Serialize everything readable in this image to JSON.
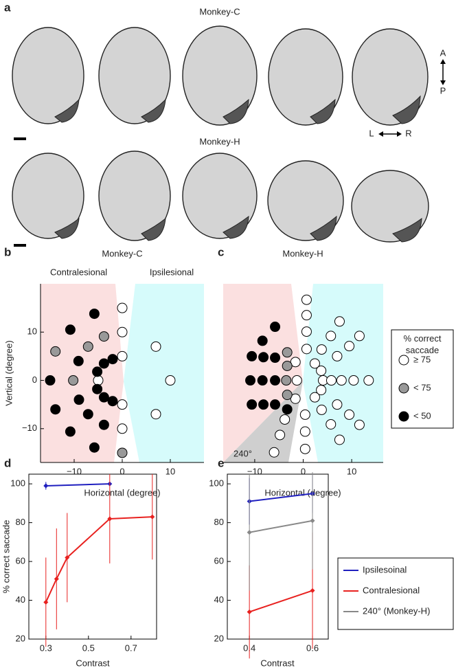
{
  "figure": {
    "panel_a": {
      "label": "a",
      "row_titles": [
        "Monkey-C",
        "Monkey-H"
      ],
      "orientation": [
        "A",
        "P",
        "L",
        "R"
      ]
    }
  },
  "chart_data": [
    {
      "type": "scatter",
      "label": "b",
      "title": "Monkey-C",
      "annotations": [
        "Contralesional",
        "Ipsilesional"
      ],
      "xlabel": "Horizontal (degree)",
      "ylabel": "Vertical (degree)",
      "xlim": [
        -17,
        17
      ],
      "ylim": [
        -17,
        20
      ],
      "xticks": [
        {
          "value": -10,
          "label": "−10"
        },
        0,
        10
      ],
      "yticks": [
        {
          "value": -10,
          "label": "−10"
        },
        0,
        10
      ],
      "series": [
        {
          "color": "#ffffff",
          "x": [
            0,
            0,
            0,
            -5,
            0,
            0,
            7,
            10,
            7
          ],
          "values": [
            15,
            10,
            5,
            0,
            -5,
            -10,
            7,
            0,
            -7
          ]
        },
        {
          "color": "#999999",
          "x": [
            -3.8,
            -13.9,
            -7.1,
            -10.2,
            0
          ],
          "values": [
            9.1,
            6,
            7,
            0,
            -15
          ]
        },
        {
          "color": "#000000",
          "x": [
            -5.8,
            -10.8,
            -9.1,
            -2,
            -3.8,
            -5.2,
            -15,
            -5.2,
            -3.8,
            -2,
            -13.9,
            -7.1,
            -9,
            -3.8,
            -10.8,
            -5.8
          ],
          "values": [
            13.8,
            10.5,
            4,
            4.4,
            3.5,
            1.8,
            0,
            -1.8,
            -3.5,
            -4.3,
            -6,
            -7,
            -4,
            -9.2,
            -10.6,
            -13.9
          ]
        }
      ]
    },
    {
      "type": "scatter",
      "label": "c",
      "title": "Monkey-H",
      "annotations": [
        "240°"
      ],
      "xlabel": "Horizontal (degree)",
      "legend_title": "% correct saccade",
      "xlim": [
        -16.5,
        16.5
      ],
      "ylim": [
        -17,
        20
      ],
      "xticks": [
        {
          "value": -10,
          "label": "−10"
        },
        0,
        10
      ],
      "series": [
        {
          "name": "≥ 75",
          "color": "#ffffff",
          "x": [
            0.7,
            0.7,
            0.7,
            0.7,
            -1.6,
            2.4,
            3.7,
            4.1,
            3.7,
            2.4,
            -1.6,
            0.4,
            0.4,
            0.4,
            -3.8,
            -4.8,
            -6,
            3.8,
            5.7,
            7.5,
            7,
            9.5,
            11.6,
            5.8,
            7.9,
            10.4,
            13.5,
            7,
            9.5,
            11.6,
            3.8,
            5.7,
            7.5,
            -1.3
          ],
          "values": [
            16.7,
            13.5,
            10.1,
            6.5,
            3.8,
            3.5,
            2,
            0,
            -2,
            -3.5,
            -3.8,
            -7.1,
            -10.6,
            -14.2,
            -8.1,
            -11.3,
            -14.9,
            6.4,
            9.2,
            12.2,
            5,
            7.1,
            9.2,
            0,
            0,
            0,
            0,
            -5,
            -7.1,
            -9.2,
            -6.1,
            -9.1,
            -12.3,
            0
          ]
        },
        {
          "name": "< 75",
          "color": "#999999",
          "x": [
            -3.3,
            -3.3,
            -3.5,
            -3.3
          ],
          "values": [
            5.8,
            3,
            0,
            -3
          ]
        },
        {
          "name": "< 50",
          "color": "#000000",
          "x": [
            -5.8,
            -8.4,
            -10.6,
            -8.2,
            -5.8,
            -10.9,
            -8.4,
            -5.8,
            -10.6,
            -8.2,
            -5.8,
            -3.3
          ],
          "values": [
            11.1,
            8.2,
            5,
            4.8,
            4.7,
            0,
            0,
            0,
            -5,
            -5,
            -5,
            -6
          ]
        }
      ]
    },
    {
      "type": "line",
      "label": "d",
      "xlabel": "Contrast",
      "ylabel": "% correct saccade",
      "xlim": [
        0.22,
        0.82
      ],
      "ylim": [
        20,
        105
      ],
      "xticks": [
        0.3,
        0.5,
        0.7
      ],
      "yticks": [
        20,
        40,
        60,
        80,
        100
      ],
      "series": [
        {
          "color": "#1f1fbf",
          "x": [
            0.3,
            0.6
          ],
          "values": [
            99,
            100
          ],
          "errors": [
            2,
            0
          ]
        },
        {
          "color": "#e8211f",
          "x": [
            0.3,
            0.35,
            0.4,
            0.6,
            0.8
          ],
          "values": [
            39,
            51,
            62,
            82,
            83
          ],
          "errors": [
            23,
            26,
            23,
            23,
            22
          ]
        }
      ]
    },
    {
      "type": "line",
      "label": "e",
      "xlabel": "Contrast",
      "xlim": [
        0.33,
        0.65
      ],
      "ylim": [
        20,
        105
      ],
      "xticks": [
        0.4,
        0.6
      ],
      "yticks": [
        20,
        40,
        60,
        80,
        100
      ],
      "series": [
        {
          "name": "Ipsilesoinal",
          "color": "#1f1fbf",
          "x": [
            0.4,
            0.6
          ],
          "values": [
            91,
            95
          ],
          "errors": [
            12,
            10
          ]
        },
        {
          "name": "Contralesional",
          "color": "#e8211f",
          "x": [
            0.4,
            0.6
          ],
          "values": [
            34,
            45
          ],
          "errors": [
            24,
            30
          ]
        },
        {
          "name": "240° (Monkey-H)",
          "color": "#888888",
          "x": [
            0.4,
            0.6
          ],
          "values": [
            75,
            81
          ],
          "errors": [
            30,
            25
          ]
        }
      ]
    }
  ]
}
